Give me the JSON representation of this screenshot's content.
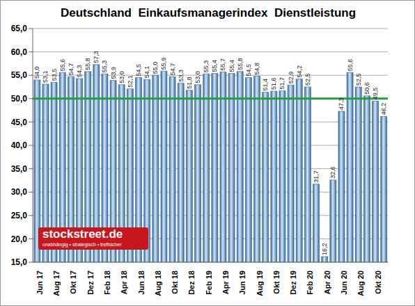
{
  "chart_data": {
    "type": "bar",
    "title": "Deutschland  Einkaufsmanagerindex  Dienstleistung",
    "categories": [
      "Jun 17",
      null,
      "Aug 17",
      null,
      "Okt 17",
      null,
      "Dez 17",
      null,
      "Feb 18",
      null,
      "Apr 18",
      null,
      "Jun 18",
      null,
      "Aug 18",
      null,
      "Okt 18",
      null,
      "Dez 18",
      null,
      "Feb 19",
      null,
      "Apr 19",
      null,
      "Jun 19",
      null,
      "Aug 19",
      null,
      "Okt 19",
      null,
      "Dez 19",
      null,
      "Feb 20",
      null,
      "Apr 20",
      null,
      "Jun 20",
      null,
      "Aug 20",
      null,
      "Okt 20",
      null
    ],
    "values": [
      54.0,
      53.1,
      53.5,
      55.6,
      54.7,
      54.3,
      55.8,
      57.3,
      55.3,
      53.9,
      53.0,
      52.1,
      54.5,
      54.1,
      55.0,
      55.9,
      54.7,
      53.3,
      51.8,
      53.0,
      55.3,
      55.4,
      55.7,
      55.4,
      55.8,
      54.5,
      54.8,
      51.4,
      51.6,
      51.7,
      52.9,
      54.2,
      52.5,
      31.7,
      16.2,
      32.6,
      47.3,
      55.6,
      52.5,
      50.6,
      49.5,
      46.2
    ],
    "value_labels": [
      "54,0",
      "53,1",
      "53,5",
      "55,6",
      "54,7",
      "54,3",
      "55,8",
      "57,3",
      "55,3",
      "53,9",
      "53,0",
      "52,1",
      "54,5",
      "54,1",
      "55,0",
      "55,9",
      "54,7",
      "53,3",
      "51,8",
      "53,0",
      "55,3",
      "55,4",
      "55,7",
      "55,4",
      "55,8",
      "54,5",
      "54,8",
      "51,4",
      "51,6",
      "51,7",
      "52,9",
      "54,2",
      "52,5",
      "31,7",
      "16,2",
      "32,6",
      "47,3",
      "55,6",
      "52,5",
      "50,6",
      "49,5",
      "46,2"
    ],
    "data_labels": true,
    "color": "#2e6aa6",
    "ylim": [
      15,
      65
    ],
    "yticks": [
      {
        "value": 15,
        "label": "15,0"
      },
      {
        "value": 20,
        "label": "20,0"
      },
      {
        "value": 25,
        "label": "25,0"
      },
      {
        "value": 30,
        "label": "30,0"
      },
      {
        "value": 35,
        "label": "35,0"
      },
      {
        "value": 40,
        "label": "40,0"
      },
      {
        "value": 45,
        "label": "45,0"
      },
      {
        "value": 50,
        "label": "50,0"
      },
      {
        "value": 55,
        "label": "55,0"
      },
      {
        "value": 60,
        "label": "60,0"
      },
      {
        "value": 65,
        "label": "65,0"
      }
    ],
    "grid": true,
    "threshold": 50,
    "threshold_color": "#22a03a",
    "watermark": {
      "text": "stockstreet.de",
      "subtext": "unabhängig • strategisch • treffsicher"
    }
  }
}
